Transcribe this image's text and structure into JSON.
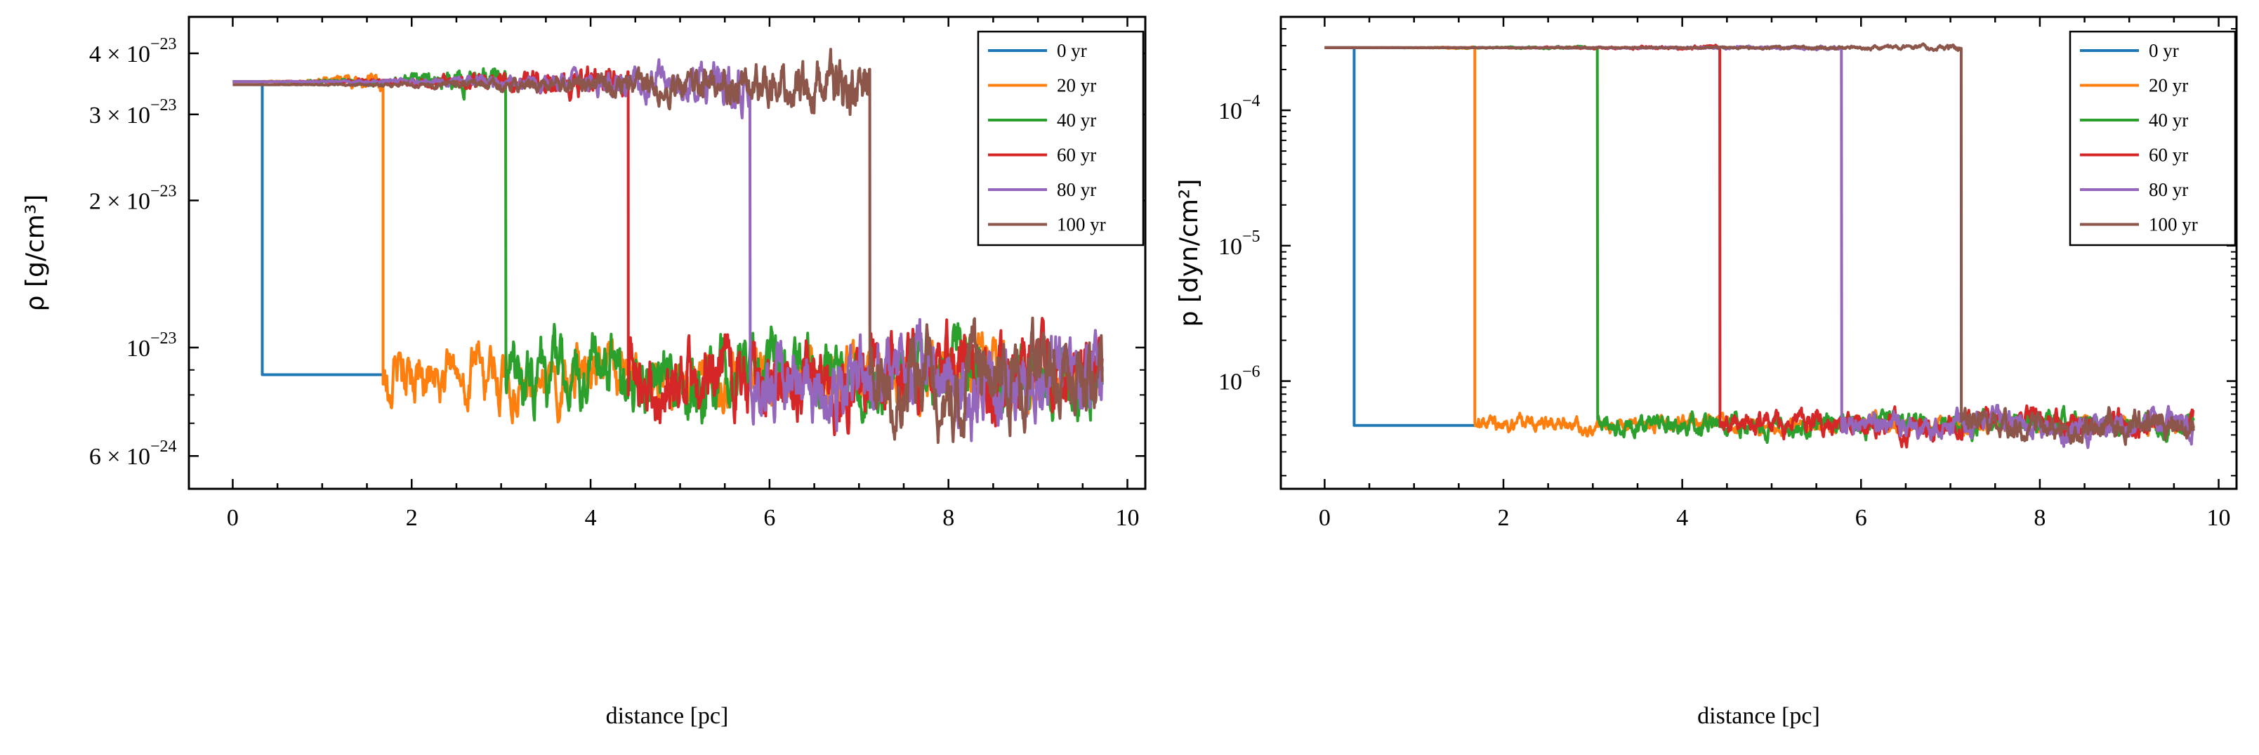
{
  "chart_data": [
    {
      "type": "line",
      "title": "",
      "xlabel": "distance [pc]",
      "ylabel": "ρ [g/cm³]",
      "yscale": "log",
      "xlim": [
        -0.49,
        10.2
      ],
      "ylim": [
        5.14e-24,
        4.75e-23
      ],
      "xticks": [
        0,
        2,
        4,
        6,
        8,
        10
      ],
      "yticks": [
        {
          "value": 4e-23,
          "mantissa": "4 × 10",
          "exp": "−23"
        },
        {
          "value": 3e-23,
          "mantissa": "3 × 10",
          "exp": "−23"
        },
        {
          "value": 2e-23,
          "mantissa": "2 × 10",
          "exp": "−23"
        },
        {
          "value": 1e-23,
          "mantissa": "10",
          "exp": "−23"
        },
        {
          "value": 6e-24,
          "mantissa": "6 × 10",
          "exp": "−24"
        }
      ],
      "yminor": [
        5e-24,
        7e-24,
        8e-24,
        9e-24
      ],
      "grid": false,
      "legend": "top-right",
      "series": [
        {
          "name": "0 yr",
          "color": "#1f77b4",
          "shock_x": 0.33,
          "x_end": 1.68,
          "upstream": 3.5e-23,
          "downstream": 8.8e-24,
          "noise_up": 0.0,
          "noise_down": 0.0
        },
        {
          "name": "20 yr",
          "color": "#ff7f0e",
          "shock_x": 1.68,
          "x_end": 9.72,
          "upstream": 3.5e-23,
          "downstream": 8.8e-24,
          "noise_up": 0.025,
          "noise_down": 0.07
        },
        {
          "name": "40 yr",
          "color": "#2ca02c",
          "shock_x": 3.05,
          "x_end": 9.72,
          "upstream": 3.5e-23,
          "downstream": 8.8e-24,
          "noise_up": 0.04,
          "noise_down": 0.09
        },
        {
          "name": "60 yr",
          "color": "#d62728",
          "shock_x": 4.42,
          "x_end": 9.72,
          "upstream": 3.5e-23,
          "downstream": 8.8e-24,
          "noise_up": 0.05,
          "noise_down": 0.1
        },
        {
          "name": "80 yr",
          "color": "#9467bd",
          "shock_x": 5.78,
          "x_end": 9.72,
          "upstream": 3.5e-23,
          "downstream": 8.6e-24,
          "noise_up": 0.06,
          "noise_down": 0.1
        },
        {
          "name": "100 yr",
          "color": "#8c564b",
          "shock_x": 7.12,
          "x_end": 9.72,
          "upstream": 3.45e-23,
          "downstream": 8.6e-24,
          "noise_up": 0.08,
          "noise_down": 0.11
        }
      ]
    },
    {
      "type": "line",
      "title": "",
      "xlabel": "distance [pc]",
      "ylabel": "p [dyn/cm²]",
      "yscale": "log",
      "xlim": [
        -0.49,
        10.2
      ],
      "ylim": [
        1.6e-07,
        0.00049
      ],
      "xticks": [
        0,
        2,
        4,
        6,
        8,
        10
      ],
      "yticks": [
        {
          "value": 0.0001,
          "mantissa": "10",
          "exp": "−4"
        },
        {
          "value": 1e-05,
          "mantissa": "10",
          "exp": "−5"
        },
        {
          "value": 1e-06,
          "mantissa": "10",
          "exp": "−6"
        }
      ],
      "yminor": [
        2e-07,
        3e-07,
        4e-07,
        5e-07,
        6e-07,
        7e-07,
        8e-07,
        9e-07,
        2e-06,
        3e-06,
        4e-06,
        5e-06,
        6e-06,
        7e-06,
        8e-06,
        9e-06,
        2e-05,
        3e-05,
        4e-05,
        5e-05,
        6e-05,
        7e-05,
        8e-05,
        9e-05,
        0.0002,
        0.0003,
        0.0004
      ],
      "grid": false,
      "legend": "top-right",
      "series": [
        {
          "name": "0 yr",
          "color": "#1f77b4",
          "shock_x": 0.33,
          "x_end": 1.68,
          "upstream": 0.00029,
          "downstream": 4.7e-07,
          "noise_up": 0.0,
          "noise_down": 0.0
        },
        {
          "name": "20 yr",
          "color": "#ff7f0e",
          "shock_x": 1.68,
          "x_end": 9.72,
          "upstream": 0.00029,
          "downstream": 4.8e-07,
          "noise_up": 0.01,
          "noise_down": 0.07
        },
        {
          "name": "40 yr",
          "color": "#2ca02c",
          "shock_x": 3.05,
          "x_end": 9.72,
          "upstream": 0.00029,
          "downstream": 4.8e-07,
          "noise_up": 0.015,
          "noise_down": 0.1
        },
        {
          "name": "60 yr",
          "color": "#d62728",
          "shock_x": 4.42,
          "x_end": 9.72,
          "upstream": 0.00029,
          "downstream": 4.8e-07,
          "noise_up": 0.02,
          "noise_down": 0.11
        },
        {
          "name": "80 yr",
          "color": "#9467bd",
          "shock_x": 5.78,
          "x_end": 9.72,
          "upstream": 0.00029,
          "downstream": 4.7e-07,
          "noise_up": 0.02,
          "noise_down": 0.12
        },
        {
          "name": "100 yr",
          "color": "#8c564b",
          "shock_x": 7.12,
          "x_end": 9.72,
          "upstream": 0.00029,
          "downstream": 4.7e-07,
          "noise_up": 0.025,
          "noise_down": 0.13
        }
      ]
    }
  ]
}
